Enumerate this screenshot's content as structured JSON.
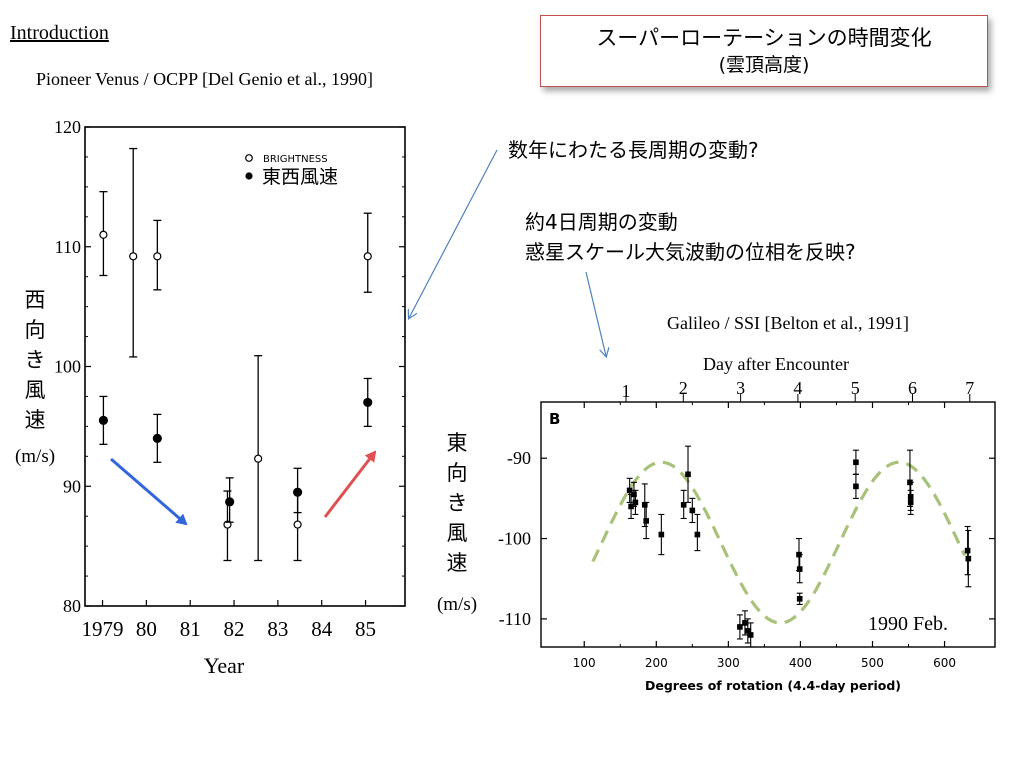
{
  "slide": {
    "heading": "Introduction",
    "left_citation": "Pioneer Venus / OCPP [Del Genio et al., 1990]",
    "title_line1": "スーパーローテーションの時間変化",
    "title_line2": "(雲頂高度)",
    "note1": "数年にわたる長周期の変動?",
    "note2_line1": "約4日周期の変動",
    "note2_line2": "惑星スケール大気波動の位相を反映?",
    "right_citation": "Galileo / SSI [Belton et al., 1991]"
  },
  "colors": {
    "title_border": "#c0504d",
    "callout_arrow": "#4f81bd",
    "decrease_arrow": "#3366dd",
    "increase_arrow": "#e05050",
    "fit_curve": "#a9c27a"
  },
  "chart_data": [
    {
      "type": "scatter",
      "xlabel": "Year",
      "ylabel_chars": [
        "西",
        "向",
        "き",
        "風",
        "速"
      ],
      "ylabel_unit": "(m/s)",
      "xlim": [
        1978.6,
        1985.9
      ],
      "ylim": [
        80,
        120
      ],
      "x_ticks": [
        1979,
        1980,
        1981,
        1982,
        1983,
        1984,
        1985
      ],
      "x_tick_labels": [
        "1979",
        "80",
        "81",
        "82",
        "83",
        "84",
        "85"
      ],
      "y_ticks": [
        80,
        90,
        100,
        110,
        120
      ],
      "legend": [
        "BRIGHTNESS",
        "東西風速"
      ],
      "legend_position": "top-right",
      "series": [
        {
          "name": "BRIGHTNESS",
          "marker": "open-circle",
          "points": [
            {
              "x": 1979.02,
              "y": 111.0,
              "lo": 107.6,
              "hi": 114.6
            },
            {
              "x": 1979.7,
              "y": 109.2,
              "lo": 100.8,
              "hi": 118.2
            },
            {
              "x": 1980.25,
              "y": 109.2,
              "lo": 106.4,
              "hi": 112.2
            },
            {
              "x": 1981.85,
              "y": 86.8,
              "lo": 83.8,
              "hi": 89.6
            },
            {
              "x": 1982.55,
              "y": 92.3,
              "lo": 83.8,
              "hi": 100.9
            },
            {
              "x": 1983.45,
              "y": 86.8,
              "lo": 83.8,
              "hi": 89.6
            },
            {
              "x": 1985.05,
              "y": 109.2,
              "lo": 106.2,
              "hi": 112.8
            }
          ]
        },
        {
          "name": "東西風速",
          "marker": "filled-circle",
          "points": [
            {
              "x": 1979.02,
              "y": 95.5,
              "lo": 93.5,
              "hi": 97.5
            },
            {
              "x": 1980.25,
              "y": 94.0,
              "lo": 92.0,
              "hi": 96.0
            },
            {
              "x": 1981.9,
              "y": 88.7,
              "lo": 87.0,
              "hi": 90.7
            },
            {
              "x": 1983.45,
              "y": 89.5,
              "lo": 87.8,
              "hi": 91.5
            },
            {
              "x": 1985.05,
              "y": 97.0,
              "lo": 95.0,
              "hi": 99.0
            }
          ]
        }
      ]
    },
    {
      "type": "scatter",
      "panel_label": "B",
      "xlabel": "Degrees of rotation (4.4-day period)",
      "ylabel_chars": [
        "東",
        "向",
        "き",
        "風",
        "速"
      ],
      "ylabel_unit": "(m/s)",
      "top_axis_label": "Day after Encounter",
      "top_ticks": [
        1,
        2,
        3,
        4,
        5,
        6,
        7
      ],
      "xlim": [
        40,
        670
      ],
      "ylim": [
        -113.5,
        -83
      ],
      "x_ticks": [
        100,
        200,
        300,
        400,
        500,
        600
      ],
      "y_ticks": [
        -90,
        -100,
        -110
      ],
      "annotation": "1990 Feb.",
      "points": [
        {
          "x": 163,
          "y": -94.0,
          "lo": -95.5,
          "hi": -92.5
        },
        {
          "x": 165,
          "y": -96.0,
          "lo": -97.5,
          "hi": -94.5
        },
        {
          "x": 169,
          "y": -94.5,
          "lo": -96.0,
          "hi": -93.0
        },
        {
          "x": 171,
          "y": -95.5,
          "lo": -97.0,
          "hi": -94.0
        },
        {
          "x": 184,
          "y": -95.8,
          "lo": -98.5,
          "hi": -93.2
        },
        {
          "x": 186,
          "y": -97.8,
          "lo": -100.0,
          "hi": -95.5
        },
        {
          "x": 207,
          "y": -99.5,
          "lo": -102.0,
          "hi": -97.0
        },
        {
          "x": 238,
          "y": -95.8,
          "lo": -97.5,
          "hi": -94.0
        },
        {
          "x": 244,
          "y": -92.0,
          "lo": -95.5,
          "hi": -88.5
        },
        {
          "x": 250,
          "y": -96.5,
          "lo": -98.0,
          "hi": -95.0
        },
        {
          "x": 257,
          "y": -99.5,
          "lo": -101.5,
          "hi": -97.0
        },
        {
          "x": 316,
          "y": -111.0,
          "lo": -112.5,
          "hi": -109.5
        },
        {
          "x": 323,
          "y": -110.5,
          "lo": -112.0,
          "hi": -109.0
        },
        {
          "x": 327,
          "y": -111.5,
          "lo": -113.0,
          "hi": -110.0
        },
        {
          "x": 331,
          "y": -112.0,
          "lo": -113.5,
          "hi": -110.5
        },
        {
          "x": 398,
          "y": -102.0,
          "lo": -104.0,
          "hi": -100.0
        },
        {
          "x": 399,
          "y": -103.8,
          "lo": -105.5,
          "hi": -102.0
        },
        {
          "x": 399,
          "y": -107.5,
          "lo": -108.2,
          "hi": -106.8
        },
        {
          "x": 477,
          "y": -90.5,
          "lo": -92.0,
          "hi": -89.0
        },
        {
          "x": 477,
          "y": -93.5,
          "lo": -95.0,
          "hi": -92.0
        },
        {
          "x": 552,
          "y": -93.0,
          "lo": -96.0,
          "hi": -89.0
        },
        {
          "x": 553,
          "y": -94.8,
          "lo": -96.5,
          "hi": -93.0
        },
        {
          "x": 553,
          "y": -95.5,
          "lo": -97.0,
          "hi": -94.0
        },
        {
          "x": 632,
          "y": -101.5,
          "lo": -104.5,
          "hi": -98.5
        },
        {
          "x": 633,
          "y": -102.5,
          "lo": -106.0,
          "hi": -99.0
        }
      ],
      "fit_curve": {
        "x_start": 112,
        "x_end": 630,
        "mean": -100.5,
        "amplitude": 10,
        "period_deg": 330,
        "peak_x": 207
      }
    }
  ]
}
